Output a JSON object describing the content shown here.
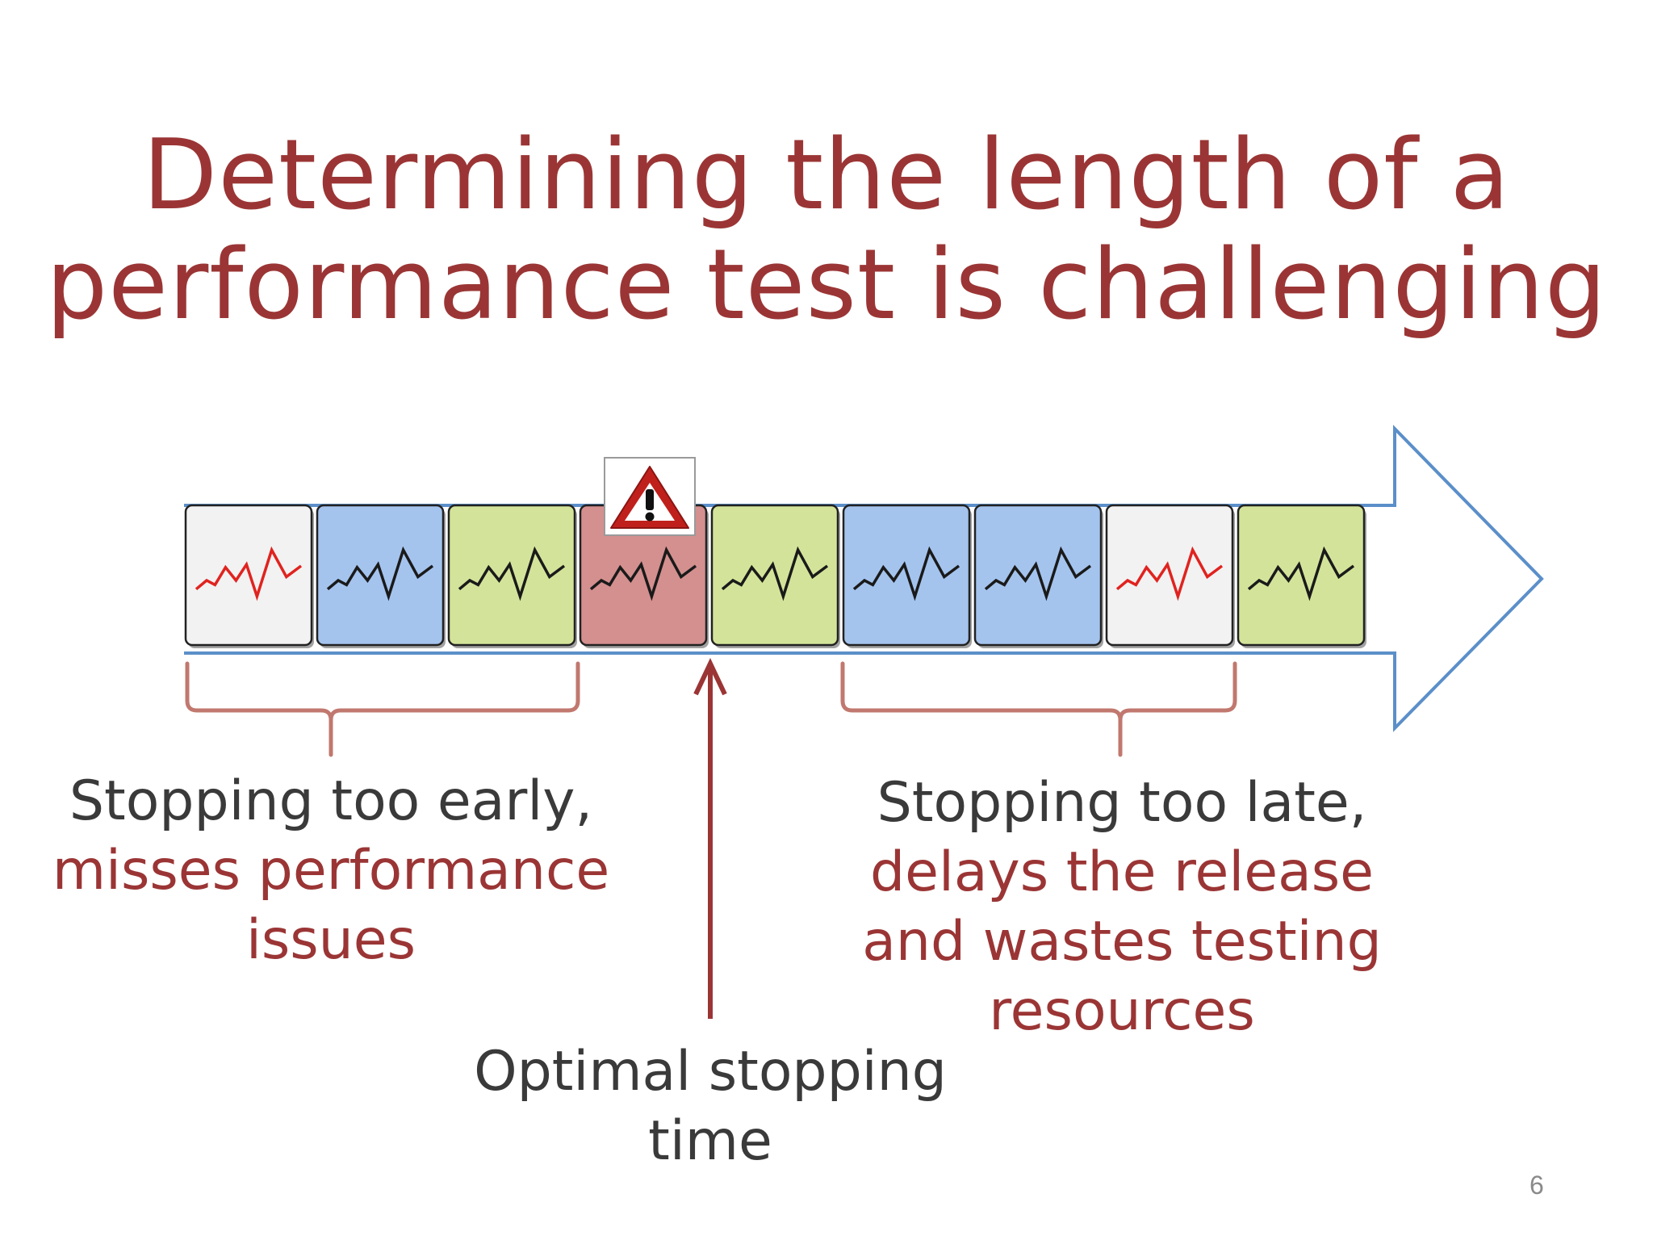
{
  "title": {
    "line1": "Determining the length of a",
    "line2": "performance test is challenging"
  },
  "timeline": {
    "boxes": [
      {
        "kind": "normal",
        "color": "#f2f2f2",
        "line": "#e0231f"
      },
      {
        "kind": "pass",
        "color": "#a4c4ee",
        "line": "#1a1a1a"
      },
      {
        "kind": "pass",
        "color": "#d3e49a",
        "line": "#1a1a1a"
      },
      {
        "kind": "regression",
        "color": "#d48f8f",
        "line": "#1a1a1a"
      },
      {
        "kind": "pass",
        "color": "#d3e49a",
        "line": "#1a1a1a"
      },
      {
        "kind": "pass",
        "color": "#a4c4ee",
        "line": "#1a1a1a"
      },
      {
        "kind": "pass",
        "color": "#a4c4ee",
        "line": "#1a1a1a"
      },
      {
        "kind": "normal",
        "color": "#f2f2f2",
        "line": "#e0231f"
      },
      {
        "kind": "pass",
        "color": "#d3e49a",
        "line": "#1a1a1a"
      }
    ],
    "warning_icon": "warning-triangle-icon",
    "arrow_color": "#5b8fc9",
    "accent_color": "#9b3535"
  },
  "notes": {
    "early": {
      "line1": "Stopping too early,",
      "line2": "misses performance",
      "line3": "issues"
    },
    "optimal": {
      "line1": "Optimal stopping",
      "line2": "time"
    },
    "late": {
      "line1": "Stopping too late,",
      "line2": "delays the release",
      "line3": "and wastes testing",
      "line4": "resources"
    }
  },
  "page_number": "6"
}
